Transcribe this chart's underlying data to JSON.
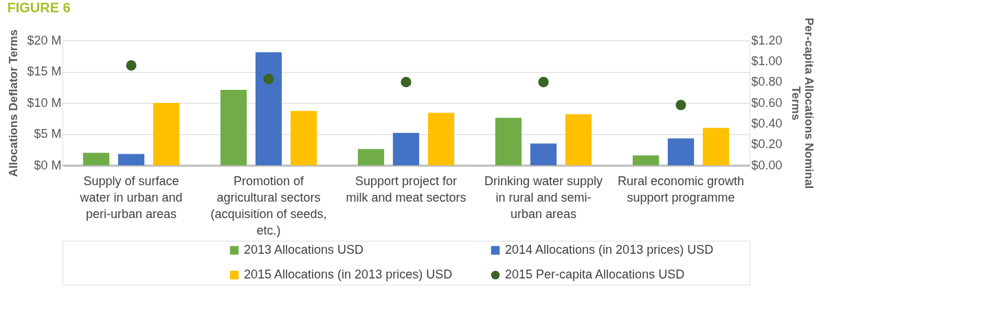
{
  "chart_data": {
    "type": "bar",
    "title": "FIGURE 6",
    "xlabel": null,
    "ylabel": "Allocations Deflator Terms",
    "y2label": "Per-capita Allocations Nominal Terms",
    "categories": [
      "Supply of surface water in urban and peri-urban areas",
      "Promotion of agricultural sectors (acquisition of seeds, etc.)",
      "Support project for milk and meat sectors",
      "Drinking water supply in rural and semi-urban areas",
      "Rural economic growth support programme"
    ],
    "series": [
      {
        "name": "2013 Allocations USD",
        "color": "#70ad47",
        "values": [
          2.0,
          12.1,
          2.6,
          7.6,
          1.6
        ]
      },
      {
        "name": "2014 Allocations (in 2013 prices) USD",
        "color": "#4472c4",
        "values": [
          1.8,
          18.1,
          5.2,
          3.5,
          4.3
        ]
      },
      {
        "name": "2015 Allocations (in 2013 prices) USD",
        "color": "#ffc000",
        "values": [
          10.0,
          8.7,
          8.4,
          8.2,
          6.0
        ]
      },
      {
        "name": "2015 Per-capita Allocations USD",
        "type": "scatter",
        "axis": "y2",
        "color": "#3b6424",
        "values": [
          0.96,
          0.83,
          0.8,
          0.8,
          0.58
        ]
      }
    ],
    "ylim": [
      0,
      20
    ],
    "yticks": [
      {
        "value": 0,
        "label": "$0 M"
      },
      {
        "value": 5,
        "label": "$5 M"
      },
      {
        "value": 10,
        "label": "$10 M"
      },
      {
        "value": 15,
        "label": "$15 M"
      },
      {
        "value": 20,
        "label": "$20 M"
      }
    ],
    "y2lim": [
      0,
      1.2
    ],
    "y2ticks": [
      {
        "value": 0,
        "label": "$0.00"
      },
      {
        "value": 0.2,
        "label": "$0.20"
      },
      {
        "value": 0.4,
        "label": "$0.40"
      },
      {
        "value": 0.6,
        "label": "$0.60"
      },
      {
        "value": 0.8,
        "label": "$0.80"
      },
      {
        "value": 1.0,
        "label": "$1.00"
      },
      {
        "value": 1.2,
        "label": "$1.20"
      }
    ],
    "grid": "y",
    "legend": "bottom",
    "marker": "circle"
  }
}
